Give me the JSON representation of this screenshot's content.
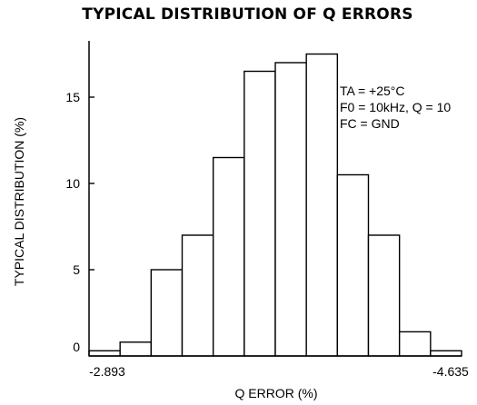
{
  "chart_data": {
    "type": "bar",
    "title": "TYPICAL DISTRIBUTION OF Q ERRORS",
    "xlabel": "Q ERROR (%)",
    "ylabel": "TYPICAL DISTRIBUTION (%)",
    "ylim": [
      0,
      18
    ],
    "yticks": [
      "0",
      "5",
      "10",
      "15"
    ],
    "x_range_labels": [
      "-2.893",
      "-4.635"
    ],
    "values": [
      0.3,
      0.8,
      5.0,
      7.0,
      11.5,
      16.5,
      17.0,
      17.5,
      10.5,
      7.0,
      1.4,
      0.3
    ],
    "annotations": [
      "TA = +25°C",
      "F0 = 10kHz, Q = 10",
      "FC = GND"
    ],
    "grid": false,
    "legend": "none"
  }
}
